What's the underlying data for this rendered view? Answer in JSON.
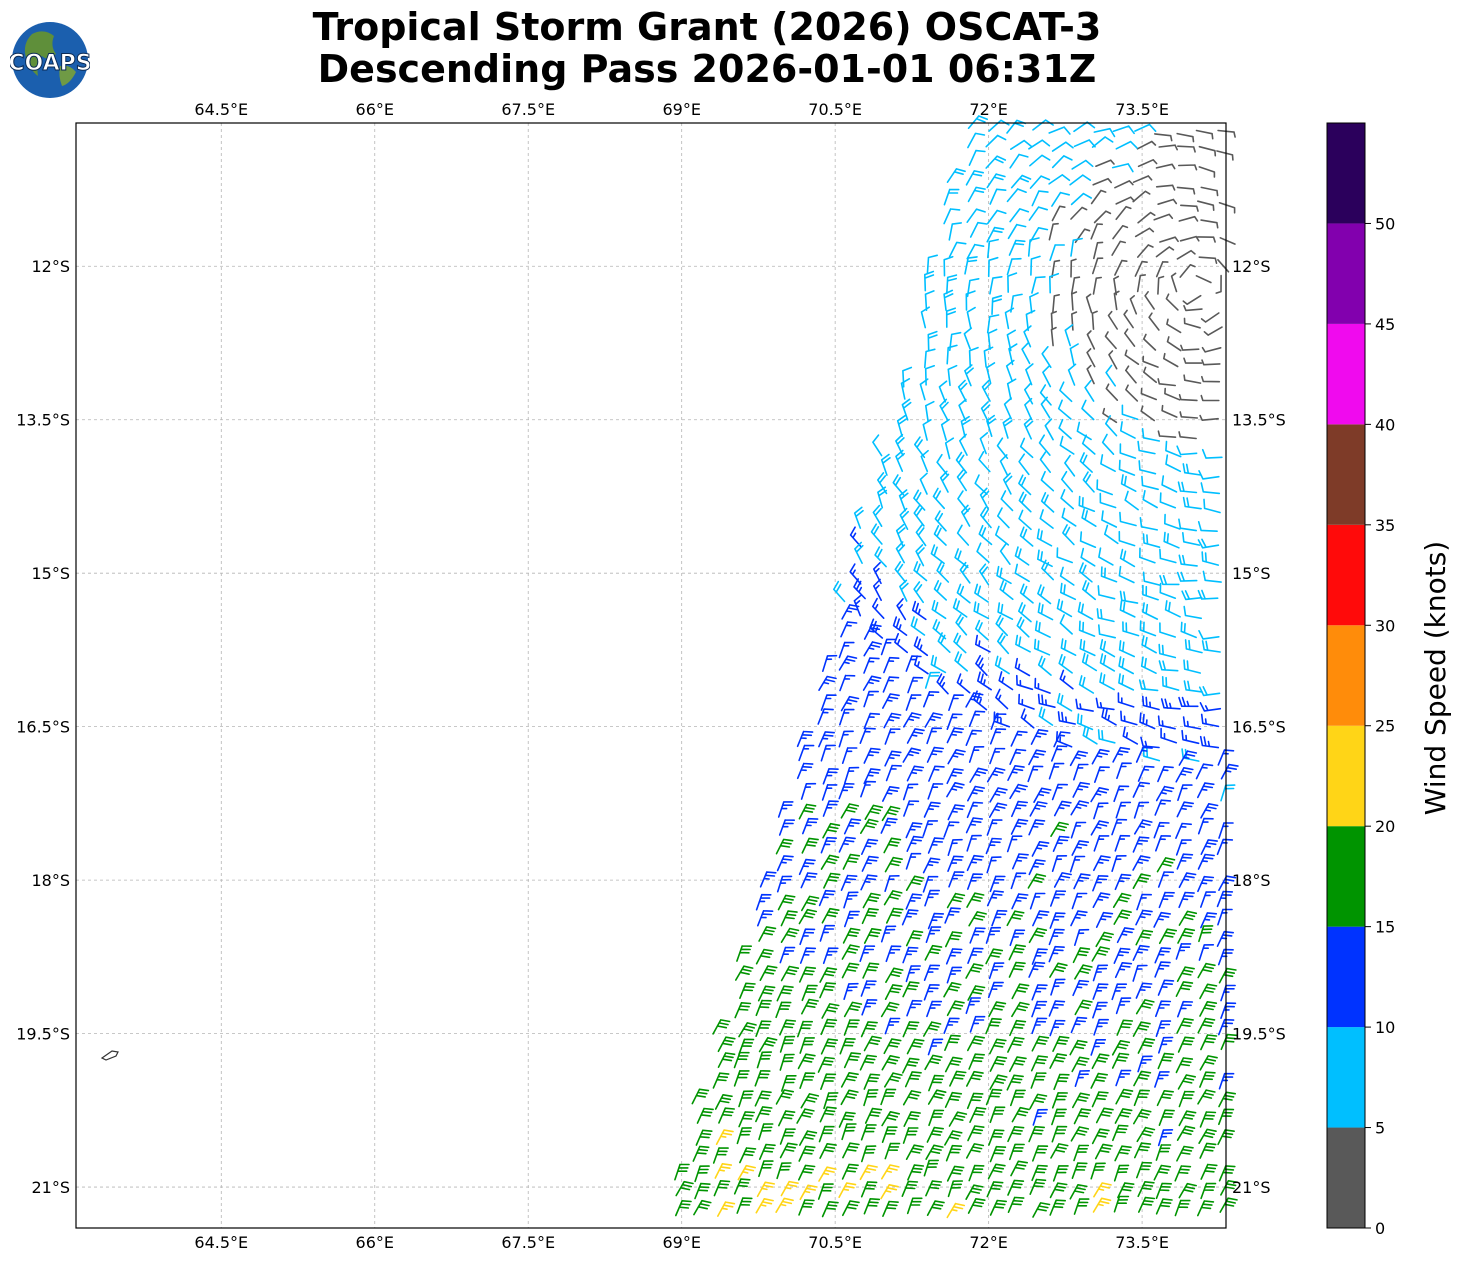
{
  "title": {
    "line1": "Tropical Storm Grant (2026) OSCAT-3",
    "line2": "Descending Pass 2026-01-01 06:31Z"
  },
  "logo": {
    "text": "COAPS",
    "icon": "globe-logo-icon"
  },
  "map": {
    "lon_ticks": [
      "64.5°E",
      "66°E",
      "67.5°E",
      "69°E",
      "70.5°E",
      "72°E",
      "73.5°E"
    ],
    "lat_ticks": [
      "12°S",
      "13.5°S",
      "15°S",
      "16.5°S",
      "18°S",
      "19.5°S",
      "21°S"
    ],
    "lon_values": [
      64.5,
      66,
      67.5,
      69,
      70.5,
      72,
      73.5
    ],
    "lat_values": [
      -12,
      -13.5,
      -15,
      -16.5,
      -18,
      -19.5,
      -21
    ],
    "lon_range": [
      63.08,
      74.32
    ],
    "lat_range": [
      -21.4,
      -10.6
    ],
    "grid": true,
    "island_icon": "island-outline-icon"
  },
  "colorbar": {
    "label": "Wind Speed (knots)",
    "ticks": [
      "0",
      "5",
      "10",
      "15",
      "20",
      "25",
      "30",
      "35",
      "40",
      "45",
      "50"
    ],
    "bins": [
      {
        "min": 0,
        "max": 5,
        "color": "#595959"
      },
      {
        "min": 5,
        "max": 10,
        "color": "#00bfff"
      },
      {
        "min": 10,
        "max": 15,
        "color": "#0033ff"
      },
      {
        "min": 15,
        "max": 20,
        "color": "#009400"
      },
      {
        "min": 20,
        "max": 25,
        "color": "#ffd517"
      },
      {
        "min": 25,
        "max": 30,
        "color": "#ff8c0a"
      },
      {
        "min": 30,
        "max": 35,
        "color": "#ff0a0a"
      },
      {
        "min": 35,
        "max": 40,
        "color": "#7e3b28"
      },
      {
        "min": 40,
        "max": 45,
        "color": "#f00aee"
      },
      {
        "min": 45,
        "max": 50,
        "color": "#8200ae"
      },
      {
        "min": 50,
        "max": 55,
        "color": "#2b005c"
      }
    ]
  }
}
